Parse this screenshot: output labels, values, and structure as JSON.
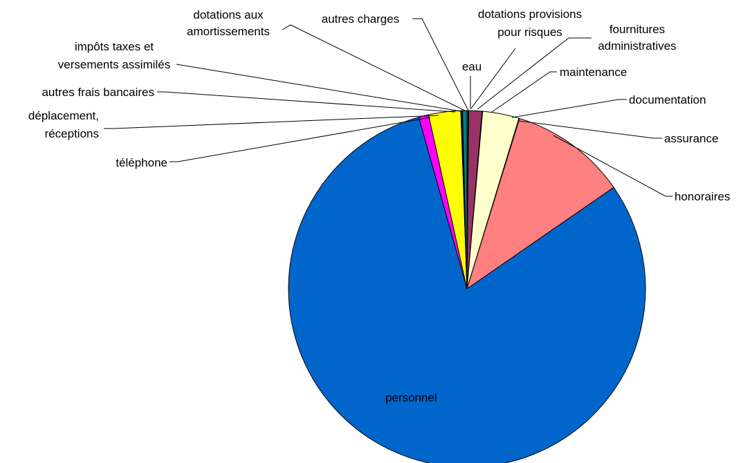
{
  "chart_data": {
    "type": "pie",
    "title": "",
    "start_angle_deg": 0,
    "direction": "clockwise",
    "slices": [
      {
        "label": "eau",
        "value": 0.1,
        "color": "#3366CC"
      },
      {
        "label": "dotations provisions pour risques",
        "value": 0.05,
        "color": "#2B4FA8"
      },
      {
        "label": "fournitures administratives",
        "value": 1.2,
        "color": "#993366"
      },
      {
        "label": "maintenance",
        "value": 0.05,
        "color": "#FF99CC"
      },
      {
        "label": "documentation",
        "value": 3.3,
        "color": "#FFFFCC"
      },
      {
        "label": "assurance",
        "value": 0.05,
        "color": "#CCFFFF"
      },
      {
        "label": "honoraires",
        "value": 10.6,
        "color": "#FF8080"
      },
      {
        "label": "personnel",
        "value": 80.2,
        "color": "#0066CC"
      },
      {
        "label": "téléphone",
        "value": 0.9,
        "color": "#FF00FF"
      },
      {
        "label": "déplacement, réceptions",
        "value": 2.9,
        "color": "#FFFF00"
      },
      {
        "label": "autres frais bancaires",
        "value": 0.05,
        "color": "#00FFFF"
      },
      {
        "label": "impôts taxes et versements assimilés",
        "value": 0.05,
        "color": "#800080"
      },
      {
        "label": "dotations aux amortissements",
        "value": 0.05,
        "color": "#800000"
      },
      {
        "label": "autres charges",
        "value": 0.4,
        "color": "#008080"
      }
    ]
  },
  "labels": {
    "eau": [
      "eau"
    ],
    "dotations provisions pour risques": [
      "dotations provisions",
      "pour risques"
    ],
    "fournitures administratives": [
      "fournitures",
      "administratives"
    ],
    "maintenance": [
      "maintenance"
    ],
    "documentation": [
      "documentation"
    ],
    "assurance": [
      "assurance"
    ],
    "honoraires": [
      "honoraires"
    ],
    "personnel": [
      "personnel"
    ],
    "téléphone": [
      "téléphone"
    ],
    "déplacement, réceptions": [
      "déplacement,",
      "réceptions"
    ],
    "autres frais bancaires": [
      "autres frais bancaires"
    ],
    "impôts taxes et versements assimilés": [
      "impôts taxes et",
      "versements assimilés"
    ],
    "dotations aux amortissements": [
      "dotations aux",
      "amortissements"
    ],
    "autres charges": [
      "autres charges"
    ]
  }
}
